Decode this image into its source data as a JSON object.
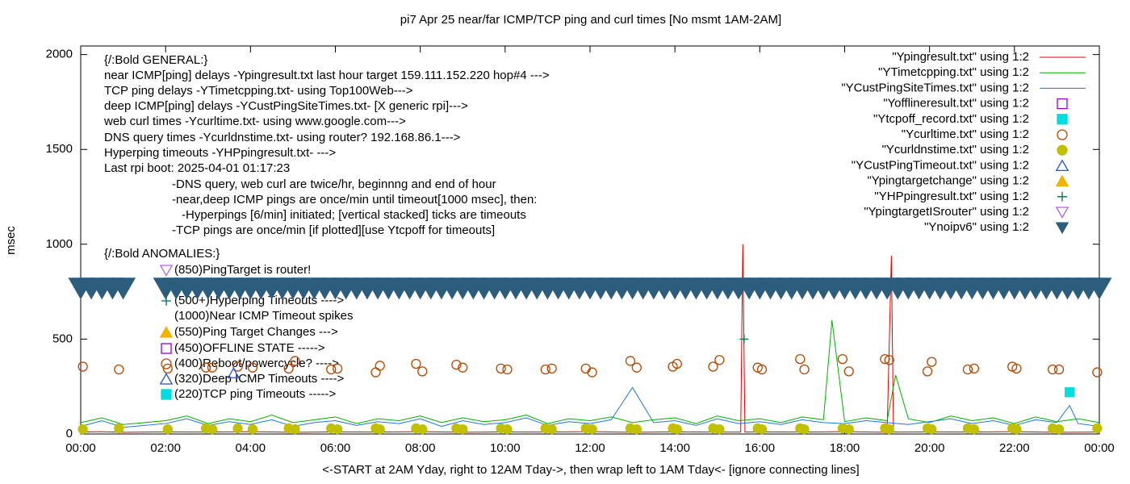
{
  "chart_data": {
    "type": "scatter",
    "title": "pi7 Apr 25  near/far ICMP/TCP ping and curl times [No msmt 1AM-2AM]",
    "xlabel": "<-START at 2AM Yday, right to 12AM Tday->, then wrap left to 1AM Tday<- [ignore connecting lines]",
    "ylabel": "msec",
    "xlim": [
      0,
      24
    ],
    "ylim": [
      0,
      2045
    ],
    "xticks": [
      {
        "value": 0,
        "label": "00:00"
      },
      {
        "value": 2,
        "label": "02:00"
      },
      {
        "value": 4,
        "label": "04:00"
      },
      {
        "value": 6,
        "label": "06:00"
      },
      {
        "value": 8,
        "label": "08:00"
      },
      {
        "value": 10,
        "label": "10:00"
      },
      {
        "value": 12,
        "label": "12:00"
      },
      {
        "value": 14,
        "label": "14:00"
      },
      {
        "value": 16,
        "label": "16:00"
      },
      {
        "value": 18,
        "label": "18:00"
      },
      {
        "value": 20,
        "label": "20:00"
      },
      {
        "value": 22,
        "label": "22:00"
      },
      {
        "value": 24,
        "label": "00:00"
      }
    ],
    "yticks": [
      0,
      500,
      1000,
      1500,
      2000
    ],
    "legend": "top-right",
    "annotations": [
      "{/:Bold GENERAL:}",
      "near ICMP[ping] delays -Ypingresult.txt last hour target 159.111.152.220 hop#4 --->",
      "TCP ping delays -YTimetcpping.txt- using Top100Web--->",
      "deep ICMP[ping] delays -YCustPingSiteTimes.txt- [X generic rpi]--->",
      "web curl times -Ycurltime.txt- using www.google.com--->",
      "DNS query times -Ycurldnstime.txt- using router? 192.168.86.1--->",
      "Hyperping timeouts -YHPpingresult.txt- --->",
      "Last rpi boot: 2025-04-01 01:17:23",
      "-DNS query, web curl are twice/hr, beginnng and end of hour",
      "-near,deep ICMP pings are once/min until timeout[1000 msec], then:",
      "-Hyperpings [6/min] initiated; [vertical stacked] ticks are timeouts",
      "-TCP pings are once/min [if plotted][use Ytcpoff for timeouts]",
      "{/:Bold ANOMALIES:}"
    ],
    "anomalies": [
      {
        "text": "(850)PingTarget is router!",
        "marker": "triangle-down-open",
        "color": "#b266e0"
      },
      {
        "text": "(500+)Hyperping Timeouts ---->",
        "marker": "plus",
        "color": "#00704a"
      },
      {
        "text": "(1000)Near ICMP Timeout spikes"
      },
      {
        "text": "(550)Ping Target Changes --->",
        "marker": "triangle",
        "color": "#f0b400"
      },
      {
        "text": "(450)OFFLINE STATE ----->",
        "marker": "square-open",
        "color": "#9400d3"
      },
      {
        "text": "(400)Reboot/powercycle? ---->",
        "marker": "circle-open",
        "color": "#b34700"
      },
      {
        "text": "(320)Deep ICMP Timeouts ---->",
        "marker": "triangle-open",
        "color": "#2255cc"
      },
      {
        "text": "(220)TCP ping Timeouts ----->",
        "marker": "square",
        "color": "#00dddd"
      }
    ],
    "series": [
      {
        "name": "\"Ypingresult.txt\" using 1:2",
        "marker": "line",
        "color": "#e00000",
        "x": [
          0,
          0.5,
          1,
          2,
          3,
          4,
          5,
          6,
          7,
          8,
          9,
          10,
          11,
          12,
          13,
          14,
          15,
          15.55,
          15.6,
          15.65,
          16,
          17,
          18,
          19,
          19.05,
          19.1,
          19.15,
          20,
          21,
          22,
          23,
          24
        ],
        "values": [
          10,
          12,
          9,
          11,
          10,
          12,
          9,
          11,
          10,
          12,
          9,
          11,
          10,
          12,
          9,
          11,
          10,
          10,
          1000,
          10,
          11,
          10,
          12,
          9,
          470,
          940,
          10,
          11,
          10,
          12,
          9,
          10
        ]
      },
      {
        "name": "\"YTimetcpping.txt\" using 1:2",
        "marker": "line",
        "color": "#00b000",
        "x": [
          0,
          0.5,
          1,
          2,
          2.5,
          3,
          3.5,
          4,
          4.5,
          5,
          5.5,
          6,
          6.5,
          7,
          7.5,
          8,
          8.5,
          9,
          9.5,
          10,
          10.5,
          11,
          11.5,
          12,
          12.5,
          13,
          13.5,
          14,
          14.5,
          15,
          15.5,
          16,
          16.5,
          17,
          17.5,
          17.7,
          18,
          18.5,
          19,
          19.2,
          19.5,
          20,
          20.5,
          21,
          21.5,
          22,
          22.5,
          23,
          23.5,
          24
        ],
        "values": [
          60,
          85,
          50,
          70,
          95,
          55,
          80,
          65,
          100,
          60,
          75,
          90,
          55,
          80,
          70,
          95,
          60,
          85,
          65,
          75,
          100,
          55,
          80,
          70,
          90,
          60,
          75,
          85,
          55,
          95,
          70,
          80,
          60,
          90,
          75,
          600,
          65,
          85,
          70,
          310,
          80,
          60,
          95,
          70,
          85,
          55,
          90,
          65,
          80,
          60
        ]
      },
      {
        "name": "\"YCustPingSiteTimes.txt\" using 1:2",
        "marker": "line",
        "color": "#1e78d2",
        "x": [
          0,
          0.5,
          1,
          2,
          2.5,
          3,
          3.5,
          4,
          4.5,
          5,
          5.5,
          6,
          6.5,
          7,
          7.5,
          8,
          8.5,
          9,
          9.5,
          10,
          10.5,
          11,
          11.5,
          12,
          12.5,
          13,
          13.5,
          14,
          14.5,
          15,
          15.5,
          16,
          16.5,
          17,
          17.5,
          18,
          18.5,
          19,
          19.5,
          20,
          20.5,
          21,
          21.5,
          22,
          22.5,
          23,
          23.3,
          23.5,
          24
        ],
        "values": [
          40,
          70,
          35,
          55,
          80,
          45,
          65,
          50,
          75,
          40,
          60,
          70,
          45,
          65,
          55,
          80,
          40,
          70,
          50,
          60,
          85,
          45,
          65,
          55,
          75,
          245,
          60,
          70,
          45,
          80,
          55,
          65,
          50,
          75,
          60,
          55,
          70,
          60,
          50,
          65,
          80,
          55,
          70,
          45,
          75,
          60,
          150,
          55,
          40
        ]
      },
      {
        "name": "\"Yofflineresult.txt\" using 1:2",
        "marker": "square-open",
        "color": "#9400d3",
        "x": [],
        "values": []
      },
      {
        "name": "\"Ytcpoff_record.txt\" using 1:2",
        "marker": "square",
        "color": "#00dddd",
        "x": [
          23.3
        ],
        "values": [
          220
        ]
      },
      {
        "name": "\"Ycurltime.txt\" using 1:2",
        "marker": "circle-open",
        "color": "#b34700",
        "x": [
          0.05,
          0.9,
          2.05,
          2.95,
          3.1,
          3.7,
          4.05,
          4.9,
          5.05,
          5.9,
          6.05,
          6.95,
          7.05,
          7.9,
          8.05,
          8.85,
          9,
          9.9,
          10.05,
          10.95,
          11.1,
          11.9,
          12.05,
          12.95,
          13.1,
          13.95,
          14.05,
          14.9,
          15.05,
          15.95,
          16.05,
          16.95,
          17.05,
          17.95,
          18.1,
          18.95,
          19.05,
          19.95,
          20.05,
          20.9,
          21.05,
          21.95,
          22.05,
          22.9,
          23.05,
          23.95
        ],
        "values": [
          355,
          340,
          345,
          350,
          350,
          355,
          350,
          345,
          385,
          340,
          345,
          325,
          360,
          370,
          330,
          365,
          350,
          345,
          340,
          340,
          345,
          345,
          325,
          385,
          350,
          355,
          370,
          355,
          390,
          350,
          340,
          395,
          340,
          395,
          330,
          395,
          390,
          330,
          380,
          340,
          345,
          355,
          345,
          340,
          340,
          325
        ]
      },
      {
        "name": "\"Ycurldnstime.txt\" using 1:2",
        "marker": "circle",
        "color": "#c0c000",
        "x": [
          0.05,
          0.9,
          2.05,
          2.95,
          3.1,
          3.7,
          4.05,
          4.9,
          5.05,
          5.9,
          6.05,
          6.95,
          7.05,
          7.9,
          8.05,
          8.85,
          9,
          9.9,
          10.05,
          10.95,
          11.1,
          11.9,
          12.05,
          12.95,
          13.1,
          13.95,
          14.05,
          14.9,
          15.05,
          15.95,
          16.05,
          16.95,
          17.05,
          17.95,
          18.1,
          18.95,
          19.05,
          19.95,
          20.05,
          20.9,
          21.05,
          21.95,
          22.05,
          22.9,
          23.05,
          23.95
        ],
        "values": [
          25,
          30,
          25,
          30,
          25,
          30,
          25,
          30,
          25,
          30,
          25,
          30,
          25,
          30,
          25,
          30,
          25,
          30,
          25,
          30,
          25,
          30,
          25,
          30,
          25,
          30,
          25,
          30,
          25,
          30,
          25,
          30,
          25,
          30,
          25,
          30,
          25,
          30,
          25,
          30,
          25,
          30,
          25,
          30,
          25,
          30
        ]
      },
      {
        "name": "\"YCustPingTimeout.txt\" using 1:2",
        "marker": "triangle-open",
        "color": "#2255cc",
        "x": [
          3.6
        ],
        "values": [
          320
        ]
      },
      {
        "name": "\"Ypingtargetchange\" using 1:2",
        "marker": "triangle",
        "color": "#f0b400",
        "x": [],
        "values": []
      },
      {
        "name": "\"YHPpingresult.txt\" using 1:2",
        "marker": "plus",
        "color": "#00704a",
        "x": [
          15.63
        ],
        "values": [
          500
        ]
      },
      {
        "name": "\"YpingtargetISrouter\" using 1:2",
        "marker": "triangle-down-open",
        "color": "#b266e0",
        "x": [],
        "values": []
      },
      {
        "name": "\"Ynoipv6\" using 1:2",
        "marker": "triangle-down",
        "color": "#2c5d7c",
        "x": [
          0,
          0.25,
          0.5,
          0.75,
          1,
          2,
          2.25,
          2.5,
          2.75,
          3,
          3.25,
          3.5,
          3.75,
          4,
          4.25,
          4.5,
          4.75,
          5,
          5.25,
          5.5,
          5.75,
          6,
          6.25,
          6.5,
          6.75,
          7,
          7.25,
          7.5,
          7.75,
          8,
          8.25,
          8.5,
          8.75,
          9,
          9.25,
          9.5,
          9.75,
          10,
          10.25,
          10.5,
          10.75,
          11,
          11.25,
          11.5,
          11.75,
          12,
          12.25,
          12.5,
          12.75,
          13,
          13.25,
          13.5,
          13.75,
          14,
          14.25,
          14.5,
          14.75,
          15,
          15.25,
          15.5,
          15.75,
          16,
          16.25,
          16.5,
          16.75,
          17,
          17.25,
          17.5,
          17.75,
          18,
          18.25,
          18.5,
          18.75,
          19,
          19.25,
          19.5,
          19.75,
          20,
          20.25,
          20.5,
          20.75,
          21,
          21.25,
          21.5,
          21.75,
          22,
          22.25,
          22.5,
          22.75,
          23,
          23.25,
          23.5,
          23.75,
          24
        ],
        "values": [
          770,
          770,
          770,
          770,
          770,
          770,
          770,
          770,
          770,
          770,
          770,
          770,
          770,
          770,
          770,
          770,
          770,
          770,
          770,
          770,
          770,
          770,
          770,
          770,
          770,
          770,
          770,
          770,
          770,
          770,
          770,
          770,
          770,
          770,
          770,
          770,
          770,
          770,
          770,
          770,
          770,
          770,
          770,
          770,
          770,
          770,
          770,
          770,
          770,
          770,
          770,
          770,
          770,
          770,
          770,
          770,
          770,
          770,
          770,
          770,
          770,
          770,
          770,
          770,
          770,
          770,
          770,
          770,
          770,
          770,
          770,
          770,
          770,
          770,
          770,
          770,
          770,
          770,
          770,
          770,
          770,
          770,
          770,
          770,
          770,
          770,
          770,
          770,
          770,
          770,
          770,
          770,
          770,
          770
        ]
      }
    ]
  }
}
